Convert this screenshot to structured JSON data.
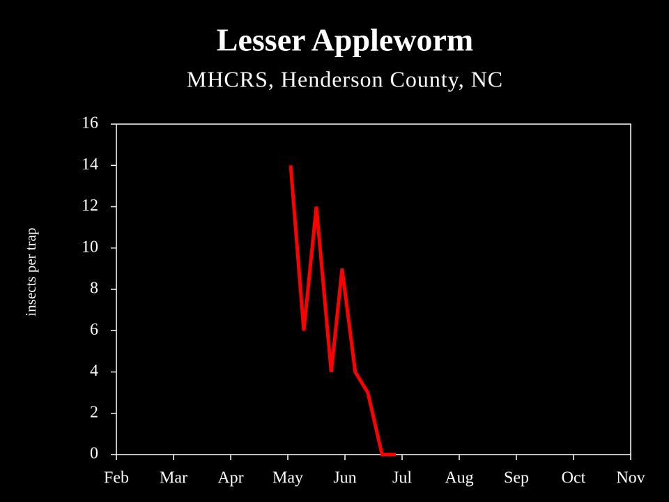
{
  "chart_data": {
    "type": "line",
    "title": "Lesser Appleworm",
    "subtitle": "MHCRS, Henderson County, NC",
    "y_label": "insects per trap",
    "x": [
      3.05,
      3.28,
      3.5,
      3.76,
      3.95,
      4.18,
      4.4,
      4.65,
      4.89
    ],
    "series": [
      {
        "name": "Lesser Appleworm",
        "color": "#ff0000",
        "values": [
          14,
          6,
          12,
          4,
          9,
          4,
          3,
          0,
          0
        ]
      }
    ],
    "xlim": [
      0,
      9
    ],
    "xticks": [
      {
        "value": 0,
        "label": "Feb"
      },
      {
        "value": 1,
        "label": "Mar"
      },
      {
        "value": 2,
        "label": "Apr"
      },
      {
        "value": 3,
        "label": "May"
      },
      {
        "value": 4,
        "label": "Jun"
      },
      {
        "value": 5,
        "label": "Jul"
      },
      {
        "value": 6,
        "label": "Aug"
      },
      {
        "value": 7,
        "label": "Sep"
      },
      {
        "value": 8,
        "label": "Oct"
      },
      {
        "value": 9,
        "label": "Nov"
      }
    ],
    "ylim": [
      0,
      16
    ],
    "yticks": [
      0,
      2,
      4,
      6,
      8,
      10,
      12,
      14,
      16
    ]
  }
}
